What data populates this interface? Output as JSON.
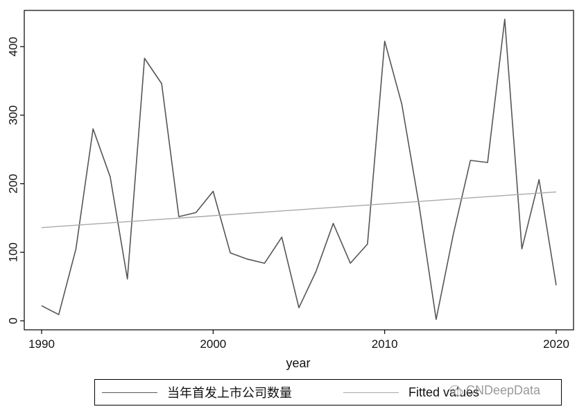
{
  "chart_data": {
    "type": "line",
    "xlabel": "year",
    "ylabel": "",
    "xlim": [
      1990,
      2020
    ],
    "ylim": [
      0,
      440
    ],
    "xticks": [
      1990,
      2000,
      2010,
      2020
    ],
    "yticks": [
      0,
      100,
      200,
      300,
      400
    ],
    "grid": false,
    "legend_position": "bottom",
    "series": [
      {
        "name": "当年首发上市公司数量",
        "color": "#555555",
        "x": [
          1990,
          1991,
          1992,
          1993,
          1994,
          1995,
          1996,
          1997,
          1998,
          1999,
          2000,
          2001,
          2002,
          2003,
          2004,
          2005,
          2006,
          2007,
          2008,
          2009,
          2010,
          2011,
          2012,
          2013,
          2014,
          2015,
          2016,
          2017,
          2018,
          2019,
          2020
        ],
        "values": [
          22,
          9,
          105,
          280,
          210,
          61,
          383,
          346,
          152,
          158,
          189,
          99,
          90,
          84,
          122,
          19,
          72,
          142,
          84,
          112,
          408,
          316,
          170,
          2,
          126,
          234,
          231,
          440,
          105,
          206,
          52
        ]
      },
      {
        "name": "Fitted values",
        "color": "#a9a9a9",
        "x": [
          1990,
          2020
        ],
        "values": [
          136,
          188
        ]
      }
    ]
  },
  "watermark": {
    "text": "CNDeepData",
    "icon": "wechat-icon"
  }
}
